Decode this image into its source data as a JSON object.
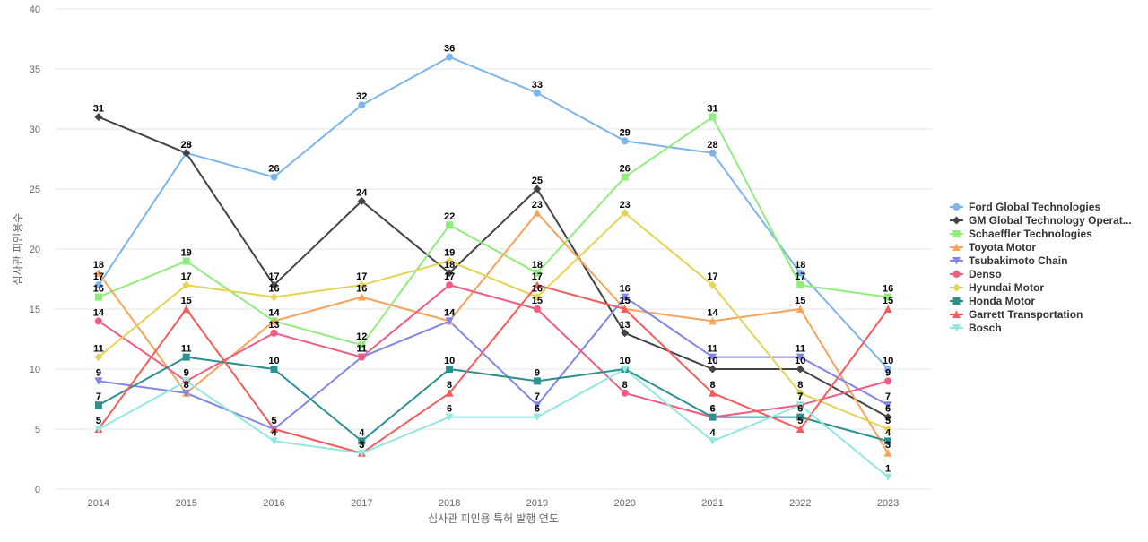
{
  "chart_data": {
    "type": "line",
    "title": "",
    "xlabel": "심사관 피인용 특허 발행 연도",
    "ylabel": "심사관 피인용수",
    "x": [
      "2014",
      "2015",
      "2016",
      "2017",
      "2018",
      "2019",
      "2020",
      "2021",
      "2022",
      "2023"
    ],
    "ylim": [
      0,
      40
    ],
    "yticks": [
      0,
      5,
      10,
      15,
      20,
      25,
      30,
      35,
      40
    ],
    "grid": true,
    "legend_position": "right",
    "series": [
      {
        "name": "Ford Global Technologies",
        "color": "#7cb5ec",
        "marker": "circle",
        "values": [
          17,
          28,
          26,
          32,
          36,
          33,
          29,
          28,
          18,
          10
        ]
      },
      {
        "name": "GM Global Technology Operat...",
        "color": "#434348",
        "marker": "diamond",
        "values": [
          31,
          28,
          17,
          24,
          18,
          25,
          13,
          10,
          10,
          6
        ]
      },
      {
        "name": "Schaeffler Technologies",
        "color": "#90ed7d",
        "marker": "square",
        "values": [
          16,
          19,
          14,
          12,
          22,
          18,
          26,
          31,
          17,
          16
        ]
      },
      {
        "name": "Toyota Motor",
        "color": "#f7a35c",
        "marker": "triangle",
        "values": [
          18,
          8,
          14,
          16,
          14,
          23,
          15,
          14,
          15,
          3
        ]
      },
      {
        "name": "Tsubakimoto Chain",
        "color": "#8085e9",
        "marker": "triangle-down",
        "values": [
          9,
          8,
          5,
          11,
          14,
          7,
          16,
          11,
          11,
          7
        ]
      },
      {
        "name": "Denso",
        "color": "#f15c80",
        "marker": "circle",
        "values": [
          14,
          9,
          13,
          11,
          17,
          15,
          8,
          6,
          7,
          9
        ]
      },
      {
        "name": "Hyundai Motor",
        "color": "#e4d354",
        "marker": "diamond",
        "values": [
          11,
          17,
          16,
          17,
          19,
          16,
          23,
          17,
          8,
          5
        ]
      },
      {
        "name": "Honda Motor",
        "color": "#2b908f",
        "marker": "square",
        "values": [
          7,
          11,
          10,
          4,
          10,
          9,
          10,
          6,
          6,
          4
        ]
      },
      {
        "name": "Garrett Transportation",
        "color": "#f45b5b",
        "marker": "triangle",
        "values": [
          5,
          15,
          5,
          3,
          8,
          17,
          15,
          8,
          5,
          15
        ]
      },
      {
        "name": "Bosch",
        "color": "#91e8e1",
        "marker": "triangle-down",
        "values": [
          5,
          9,
          4,
          3,
          6,
          6,
          10,
          4,
          7,
          1
        ]
      }
    ]
  }
}
